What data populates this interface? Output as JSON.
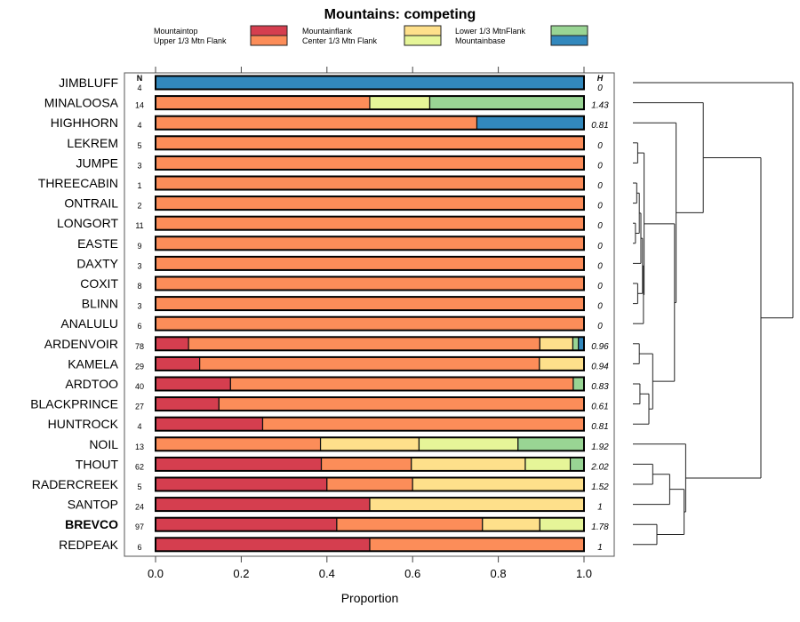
{
  "chart_data": {
    "type": "bar",
    "orientation": "horizontal-stacked",
    "title": "Mountains: competing",
    "xlabel": "Proportion",
    "ylabel": "",
    "xlim": [
      0,
      1
    ],
    "x_ticks": [
      "0.0",
      "0.2",
      "0.4",
      "0.6",
      "0.8",
      "1.0"
    ],
    "grid": false,
    "legend_position": "top",
    "n_header": "N",
    "h_header": "H",
    "series": [
      {
        "name": "Mountaintop",
        "color": "#d53e4f"
      },
      {
        "name": "Upper 1/3 Mtn Flank",
        "color": "#fc8d59"
      },
      {
        "name": "Mountainflank",
        "color": "#fee08b"
      },
      {
        "name": "Center 1/3 Mtn Flank",
        "color": "#e6f598"
      },
      {
        "name": "Lower 1/3 MtnFlank",
        "color": "#99d594"
      },
      {
        "name": "Mountainbase",
        "color": "#3288bd"
      }
    ],
    "categories": [
      "JIMBLUFF",
      "MINALOOSA",
      "HIGHHORN",
      "LEKREM",
      "JUMPE",
      "THREECABIN",
      "ONTRAIL",
      "LONGORT",
      "EASTE",
      "DAXTY",
      "COXIT",
      "BLINN",
      "ANALULU",
      "ARDENVOIR",
      "KAMELA",
      "ARDTOO",
      "BLACKPRINCE",
      "HUNTROCK",
      "NOIL",
      "THOUT",
      "RADERCREEK",
      "SANTOP",
      "BREVCO",
      "REDPEAK"
    ],
    "bold_categories": [
      "BREVCO"
    ],
    "N": [
      4,
      14,
      4,
      5,
      3,
      1,
      2,
      11,
      9,
      3,
      8,
      3,
      6,
      78,
      29,
      40,
      27,
      4,
      13,
      62,
      5,
      24,
      97,
      6
    ],
    "H": [
      "0",
      "1.43",
      "0.81",
      "0",
      "0",
      "0",
      "0",
      "0",
      "0",
      "0",
      "0",
      "0",
      "0",
      "0.96",
      "0.94",
      "0.83",
      "0.61",
      "0.81",
      "1.92",
      "2.02",
      "1.52",
      "1",
      "1.78",
      "1"
    ],
    "proportions": [
      [
        0,
        0,
        0,
        0,
        0,
        1
      ],
      [
        0,
        0.5,
        0,
        0.14,
        0.36,
        0
      ],
      [
        0,
        0.75,
        0,
        0,
        0,
        0.25
      ],
      [
        0,
        1,
        0,
        0,
        0,
        0
      ],
      [
        0,
        1,
        0,
        0,
        0,
        0
      ],
      [
        0,
        1,
        0,
        0,
        0,
        0
      ],
      [
        0,
        1,
        0,
        0,
        0,
        0
      ],
      [
        0,
        1,
        0,
        0,
        0,
        0
      ],
      [
        0,
        1,
        0,
        0,
        0,
        0
      ],
      [
        0,
        1,
        0,
        0,
        0,
        0
      ],
      [
        0,
        1,
        0,
        0,
        0,
        0
      ],
      [
        0,
        1,
        0,
        0,
        0,
        0
      ],
      [
        0,
        1,
        0,
        0,
        0,
        0
      ],
      [
        0.077,
        0.82,
        0.077,
        0,
        0.013,
        0.013
      ],
      [
        0.103,
        0.793,
        0.104,
        0,
        0,
        0
      ],
      [
        0.175,
        0.8,
        0,
        0,
        0.025,
        0
      ],
      [
        0.148,
        0.852,
        0,
        0,
        0,
        0
      ],
      [
        0.25,
        0.75,
        0,
        0,
        0,
        0
      ],
      [
        0,
        0.385,
        0.23,
        0.231,
        0.154,
        0
      ],
      [
        0.387,
        0.21,
        0.266,
        0.105,
        0.032,
        0
      ],
      [
        0.4,
        0.2,
        0.4,
        0,
        0,
        0
      ],
      [
        0.5,
        0,
        0.5,
        0,
        0,
        0
      ],
      [
        0.423,
        0.34,
        0.134,
        0.103,
        0,
        0
      ],
      [
        0.5,
        0.5,
        0,
        0,
        0,
        0
      ]
    ],
    "dendrogram": {
      "merges": [
        [
          [
            3
          ],
          [
            4
          ],
          0.15
        ],
        [
          [
            5
          ],
          [
            6
          ],
          0.12
        ],
        [
          [
            7
          ],
          [
            8
          ],
          0.08
        ],
        [
          [
            10
          ],
          [
            11
          ],
          0.15
        ],
        [
          [
            5,
            6
          ],
          [
            7,
            8
          ],
          0.2
        ],
        [
          [
            5,
            6,
            7,
            8
          ],
          [
            9
          ],
          0.25
        ],
        [
          [
            5,
            6,
            7,
            8,
            9
          ],
          [
            10,
            11
          ],
          0.3
        ],
        [
          [
            5,
            6,
            7,
            8,
            9,
            10,
            11
          ],
          [
            12
          ],
          0.33
        ],
        [
          [
            3,
            4
          ],
          [
            5,
            6,
            7,
            8,
            9,
            10,
            11,
            12
          ],
          0.35
        ],
        [
          [
            13
          ],
          [
            14
          ],
          0.2
        ],
        [
          [
            15
          ],
          [
            16
          ],
          0.22
        ],
        [
          [
            15,
            16
          ],
          [
            17
          ],
          0.5
        ],
        [
          [
            13,
            14
          ],
          [
            15,
            16,
            17
          ],
          0.62
        ],
        [
          [
            3,
            4,
            5,
            6,
            7,
            8,
            9,
            10,
            11,
            12
          ],
          [
            13,
            14,
            15,
            16,
            17
          ],
          1.3
        ],
        [
          [
            2
          ],
          [
            3,
            4,
            5,
            6,
            7,
            8,
            9,
            10,
            11,
            12,
            13,
            14,
            15,
            16,
            17
          ],
          1.35
        ],
        [
          [
            1
          ],
          [
            2,
            3,
            4,
            5,
            6,
            7,
            8,
            9,
            10,
            11,
            12,
            13,
            14,
            15,
            16,
            17
          ],
          2.2
        ],
        [
          [
            19
          ],
          [
            20
          ],
          0.62
        ],
        [
          [
            19,
            20
          ],
          [
            21
          ],
          1.15
        ],
        [
          [
            22
          ],
          [
            23
          ],
          0.75
        ],
        [
          [
            19,
            20,
            21
          ],
          [
            22,
            23
          ],
          1.6
        ],
        [
          [
            18
          ],
          [
            19,
            20,
            21,
            22,
            23
          ],
          1.65
        ],
        [
          [
            1,
            2,
            3,
            4,
            5,
            6,
            7,
            8,
            9,
            10,
            11,
            12,
            13,
            14,
            15,
            16,
            17
          ],
          [
            18,
            19,
            20,
            21,
            22,
            23
          ],
          4.0
        ],
        [
          [
            0
          ],
          [
            1,
            2,
            3,
            4,
            5,
            6,
            7,
            8,
            9,
            10,
            11,
            12,
            13,
            14,
            15,
            16,
            17,
            18,
            19,
            20,
            21,
            22,
            23
          ],
          5.0
        ]
      ]
    }
  }
}
